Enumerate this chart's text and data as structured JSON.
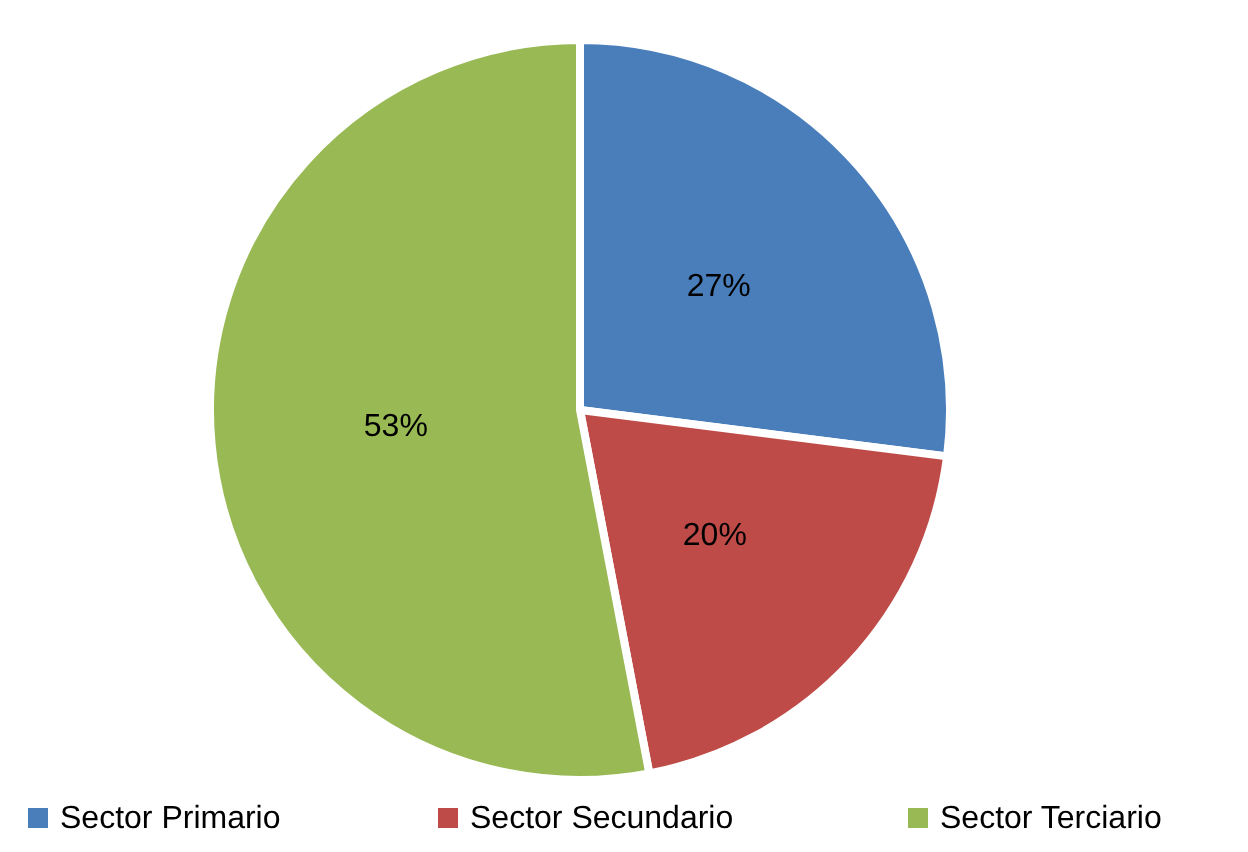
{
  "chart_data": {
    "type": "pie",
    "categories": [
      "Sector Primario",
      "Sector Secundario",
      "Sector Terciario"
    ],
    "values": [
      27,
      20,
      53
    ],
    "colors": [
      "#4a7ebb",
      "#be4b48",
      "#98b954"
    ],
    "value_labels": [
      "27%",
      "20%",
      "53%"
    ],
    "legend": "bottom"
  }
}
